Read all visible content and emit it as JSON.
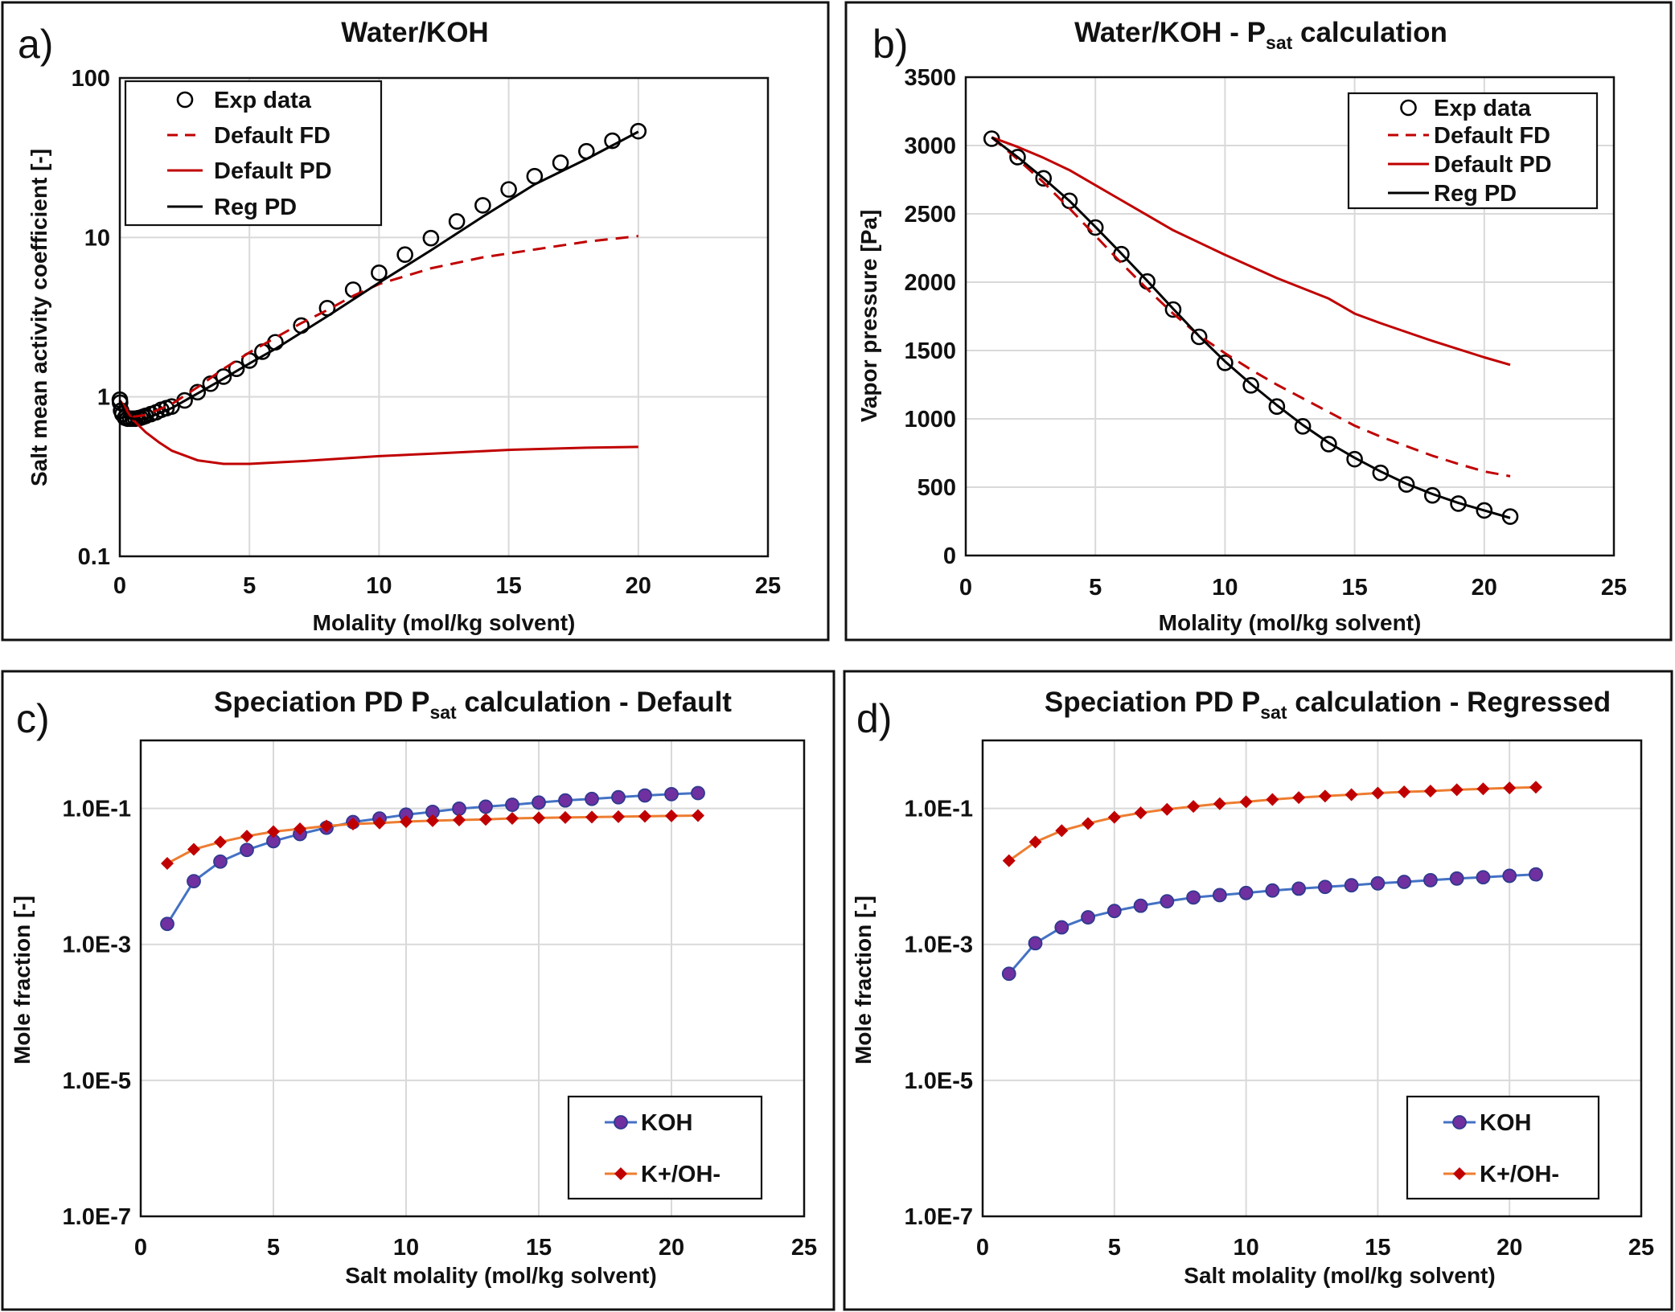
{
  "chart_data": [
    {
      "panel": "a)",
      "type": "scatter",
      "title": {
        "main": "Water/KOH"
      },
      "xlabel": "Molality (mol/kg solvent)",
      "ylabel": "Salt mean activity coefficient [-]",
      "xlim": [
        0,
        25
      ],
      "ylim": [
        0.1,
        100
      ],
      "yscale": "log",
      "xticks": [
        "0",
        "5",
        "10",
        "15",
        "20",
        "25"
      ],
      "yticks": [
        "0.1",
        "1",
        "10",
        "100"
      ],
      "grid": true,
      "legend_position": "top-left",
      "series": [
        {
          "name": "Exp data",
          "style": "marker-circle-open",
          "color": "#000000",
          "x": [
            0.001,
            0.01,
            0.05,
            0.1,
            0.2,
            0.3,
            0.4,
            0.5,
            0.6,
            0.7,
            0.8,
            0.9,
            1.0,
            1.2,
            1.4,
            1.6,
            1.8,
            2.0,
            2.5,
            3.0,
            3.5,
            4.0,
            4.5,
            5.0,
            5.5,
            6,
            7,
            8,
            9,
            10,
            11,
            12,
            13,
            14,
            15,
            16,
            17,
            18,
            19,
            20
          ],
          "y": [
            0.96,
            0.92,
            0.82,
            0.78,
            0.74,
            0.73,
            0.73,
            0.73,
            0.73,
            0.735,
            0.74,
            0.75,
            0.76,
            0.78,
            0.8,
            0.83,
            0.85,
            0.87,
            0.95,
            1.07,
            1.21,
            1.34,
            1.5,
            1.69,
            1.92,
            2.2,
            2.8,
            3.6,
            4.7,
            6.0,
            7.8,
            9.9,
            12.6,
            15.9,
            20.0,
            24.2,
            29.4,
            34.7,
            40.4,
            46.4
          ]
        },
        {
          "name": "Default FD",
          "style": "dashed",
          "color": "#c00000",
          "x": [
            0,
            0.5,
            1,
            2,
            3,
            4,
            5,
            6,
            7,
            8,
            9,
            10,
            12,
            14,
            16,
            18,
            20
          ],
          "y": [
            0.95,
            0.75,
            0.77,
            0.9,
            1.15,
            1.5,
            1.9,
            2.35,
            2.9,
            3.5,
            4.3,
            5.1,
            6.4,
            7.5,
            8.4,
            9.4,
            10.2
          ]
        },
        {
          "name": "Default PD",
          "style": "solid",
          "color": "#c00000",
          "x": [
            0,
            0.5,
            1,
            1.5,
            2,
            3,
            4,
            5,
            7,
            10,
            12,
            15,
            18,
            20
          ],
          "y": [
            0.95,
            0.72,
            0.6,
            0.52,
            0.46,
            0.4,
            0.38,
            0.38,
            0.395,
            0.425,
            0.44,
            0.465,
            0.48,
            0.486
          ]
        },
        {
          "name": "Reg PD",
          "style": "solid",
          "color": "#000000",
          "x": [
            0,
            0.3,
            0.7,
            1,
            2,
            3,
            4,
            5,
            6,
            8,
            10,
            12,
            14,
            16,
            18,
            20
          ],
          "y": [
            0.95,
            0.74,
            0.72,
            0.73,
            0.85,
            1.05,
            1.3,
            1.62,
            2.0,
            3.2,
            5.2,
            8.3,
            13.5,
            21.5,
            31,
            46
          ]
        }
      ]
    },
    {
      "panel": "b)",
      "type": "scatter",
      "title": {
        "main": "Water/KOH - P",
        "sub": "sat",
        "rest": " calculation"
      },
      "xlabel": "Molality (mol/kg solvent)",
      "ylabel": "Vapor pressure [Pa]",
      "xlim": [
        0,
        25
      ],
      "ylim": [
        0,
        3500
      ],
      "yscale": "linear",
      "xticks": [
        "0",
        "5",
        "10",
        "15",
        "20",
        "25"
      ],
      "yticks": [
        "0",
        "500",
        "1000",
        "1500",
        "2000",
        "2500",
        "3000",
        "3500"
      ],
      "grid": true,
      "legend_position": "top-right",
      "series": [
        {
          "name": "Exp data",
          "style": "marker-circle-open",
          "color": "#000000",
          "x": [
            1,
            2,
            3,
            4,
            5,
            6,
            7,
            8,
            9,
            10,
            11,
            12,
            13,
            14,
            15,
            16,
            17,
            18,
            19,
            20,
            21
          ],
          "y": [
            3050,
            2915,
            2760,
            2595,
            2400,
            2205,
            2005,
            1800,
            1600,
            1410,
            1245,
            1090,
            945,
            815,
            705,
            605,
            520,
            440,
            380,
            330,
            285
          ]
        },
        {
          "name": "Default FD",
          "style": "dashed",
          "color": "#c00000",
          "x": [
            1,
            2,
            3,
            4,
            5,
            6,
            7,
            8,
            9,
            10,
            11,
            12,
            13,
            14,
            15,
            16,
            17,
            18,
            19,
            20,
            21
          ],
          "y": [
            3060,
            2900,
            2730,
            2540,
            2340,
            2140,
            1950,
            1770,
            1610,
            1480,
            1360,
            1250,
            1150,
            1050,
            950,
            870,
            800,
            730,
            670,
            615,
            580
          ]
        },
        {
          "name": "Default PD",
          "style": "solid",
          "color": "#c00000",
          "x": [
            1,
            2,
            3,
            4,
            5,
            6,
            7,
            8,
            9,
            10,
            12,
            14,
            15,
            16,
            18,
            20,
            21
          ],
          "y": [
            3060,
            2990,
            2910,
            2820,
            2710,
            2600,
            2490,
            2380,
            2290,
            2200,
            2030,
            1880,
            1770,
            1700,
            1570,
            1450,
            1395
          ]
        },
        {
          "name": "Reg PD",
          "style": "solid",
          "color": "#000000",
          "x": [
            1,
            2,
            3,
            4,
            5,
            6,
            7,
            8,
            9,
            10,
            11,
            12,
            13,
            14,
            15,
            16,
            17,
            18,
            19,
            20,
            21
          ],
          "y": [
            3060,
            2915,
            2760,
            2595,
            2405,
            2210,
            2010,
            1805,
            1605,
            1420,
            1255,
            1100,
            955,
            825,
            715,
            615,
            525,
            450,
            385,
            330,
            275
          ]
        }
      ]
    },
    {
      "panel": "c)",
      "type": "line",
      "title": {
        "main": "Speciation PD P",
        "sub": "sat",
        "rest": " calculation  - Default"
      },
      "xlabel": "Salt molality (mol/kg solvent)",
      "ylabel": "Mole fraction [-]",
      "xlim": [
        0,
        25
      ],
      "ylim": [
        1e-07,
        1
      ],
      "yscale": "log",
      "xticks": [
        "0",
        "5",
        "10",
        "15",
        "20",
        "25"
      ],
      "yticks": [
        "1.0E-7",
        "1.0E-5",
        "1.0E-3",
        "1.0E-1"
      ],
      "grid": true,
      "legend_position": "bottom-right",
      "series": [
        {
          "name": "KOH",
          "style": "line-circle",
          "color": "#4472c4",
          "marker_color": "#7030a0",
          "x": [
            1,
            2,
            3,
            4,
            5,
            6,
            7,
            8,
            9,
            10,
            11,
            12,
            13,
            14,
            15,
            16,
            17,
            18,
            19,
            20,
            21
          ],
          "y": [
            0.002,
            0.0085,
            0.0165,
            0.0245,
            0.033,
            0.042,
            0.052,
            0.063,
            0.071,
            0.081,
            0.089,
            0.099,
            0.106,
            0.113,
            0.122,
            0.131,
            0.138,
            0.146,
            0.155,
            0.162,
            0.168
          ]
        },
        {
          "name": "K+/OH-",
          "style": "line-diamond",
          "color": "#ed7d31",
          "marker_color": "#c00000",
          "x": [
            1,
            2,
            3,
            4,
            5,
            6,
            7,
            8,
            9,
            10,
            11,
            12,
            13,
            14,
            15,
            16,
            17,
            18,
            19,
            20,
            21
          ],
          "y": [
            0.0155,
            0.025,
            0.032,
            0.039,
            0.0455,
            0.05,
            0.055,
            0.059,
            0.061,
            0.064,
            0.066,
            0.0675,
            0.069,
            0.0714,
            0.0724,
            0.0735,
            0.0745,
            0.0755,
            0.0765,
            0.0775,
            0.0785
          ]
        }
      ]
    },
    {
      "panel": "d)",
      "type": "line",
      "title": {
        "main": "Speciation PD P",
        "sub": "sat",
        "rest": " calculation  - Regressed"
      },
      "xlabel": "Salt molality (mol/kg solvent)",
      "ylabel": "Mole fraction [-]",
      "xlim": [
        0,
        25
      ],
      "ylim": [
        1e-07,
        1
      ],
      "yscale": "log",
      "xticks": [
        "0",
        "5",
        "10",
        "15",
        "20",
        "25"
      ],
      "yticks": [
        "1.0E-7",
        "1.0E-5",
        "1.0E-3",
        "1.0E-1"
      ],
      "grid": true,
      "legend_position": "bottom-right",
      "series": [
        {
          "name": "KOH",
          "style": "line-circle",
          "color": "#4472c4",
          "marker_color": "#7030a0",
          "x": [
            1,
            2,
            3,
            4,
            5,
            6,
            7,
            8,
            9,
            10,
            11,
            12,
            13,
            14,
            15,
            16,
            17,
            18,
            19,
            20,
            21
          ],
          "y": [
            0.00037,
            0.00104,
            0.00178,
            0.0025,
            0.0031,
            0.0037,
            0.0043,
            0.0049,
            0.0053,
            0.0057,
            0.0062,
            0.0066,
            0.007,
            0.0074,
            0.0079,
            0.0083,
            0.0088,
            0.0093,
            0.0097,
            0.0102,
            0.0107
          ]
        },
        {
          "name": "K+/OH-",
          "style": "line-diamond",
          "color": "#ed7d31",
          "marker_color": "#c00000",
          "x": [
            1,
            2,
            3,
            4,
            5,
            6,
            7,
            8,
            9,
            10,
            11,
            12,
            13,
            14,
            15,
            16,
            17,
            18,
            19,
            20,
            21
          ],
          "y": [
            0.017,
            0.032,
            0.047,
            0.06,
            0.074,
            0.086,
            0.097,
            0.107,
            0.117,
            0.125,
            0.135,
            0.144,
            0.152,
            0.159,
            0.168,
            0.175,
            0.18,
            0.188,
            0.194,
            0.2,
            0.205
          ]
        }
      ]
    }
  ]
}
